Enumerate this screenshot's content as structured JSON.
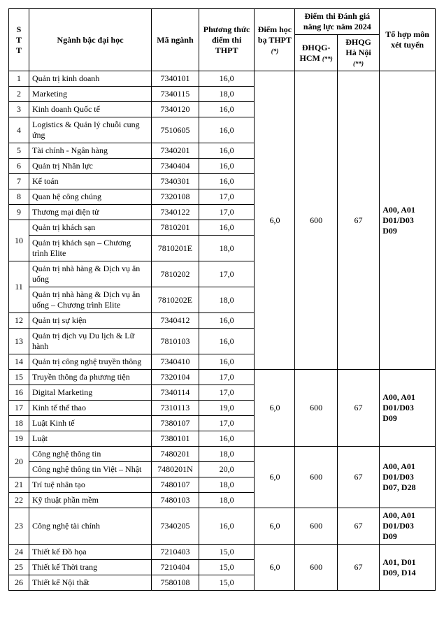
{
  "columns": {
    "stt_width": 24,
    "name_width": 145,
    "code_width": 56,
    "thpt_width": 66,
    "hocba_width": 48,
    "dhqgHcm_width": 50,
    "dhqgHn_width": 50,
    "combo_width": 66
  },
  "header": {
    "stt": "S\nT\nT",
    "name": "Ngành bậc đại học",
    "code": "Mã ngành",
    "thpt": "Phương thức điểm thi THPT",
    "hocba": "Điểm học bạ THPT",
    "hocba_note": "(*)",
    "dhgnl": "Điểm thi Đánh giá năng lực năm 2024",
    "dhqg_hcm": "ĐHQG-HCM",
    "dhqg_hcm_note": "(**)",
    "dhqg_hn": "ĐHQG Hà Nội",
    "dhqg_hn_note": "(**)",
    "combo": "Tổ hợp môn xét tuyển"
  },
  "groups": [
    {
      "hocba": "6,0",
      "dhqg_hcm": "600",
      "dhqg_hn": "67",
      "combo": "A00, A01\nD01/D03\nD09",
      "rows": [
        {
          "stt": "1",
          "name": "Quản trị kinh doanh",
          "code": "7340101",
          "thpt": "16,0",
          "rowspan": 1
        },
        {
          "stt": "2",
          "name": "Marketing",
          "code": "7340115",
          "thpt": "18,0",
          "rowspan": 1
        },
        {
          "stt": "3",
          "name": "Kinh doanh Quốc tế",
          "code": "7340120",
          "thpt": "16,0",
          "rowspan": 1
        },
        {
          "stt": "4",
          "name": "Logistics & Quản lý chuỗi cung ứng",
          "code": "7510605",
          "thpt": "16,0",
          "rowspan": 1
        },
        {
          "stt": "5",
          "name": "Tài chính - Ngân hàng",
          "code": "7340201",
          "thpt": "16,0",
          "rowspan": 1
        },
        {
          "stt": "6",
          "name": "Quản trị Nhân lực",
          "code": "7340404",
          "thpt": "16,0",
          "rowspan": 1
        },
        {
          "stt": "7",
          "name": "Kế toán",
          "code": "7340301",
          "thpt": "16,0",
          "rowspan": 1
        },
        {
          "stt": "8",
          "name": "Quan hệ công chúng",
          "code": "7320108",
          "thpt": "17,0",
          "rowspan": 1
        },
        {
          "stt": "9",
          "name": "Thương mại điện tử",
          "code": "7340122",
          "thpt": "17,0",
          "rowspan": 1
        },
        {
          "stt": "10",
          "name": "Quản trị khách sạn",
          "code": "7810201",
          "thpt": "16,0",
          "rowspan": 2
        },
        {
          "stt": "",
          "name": "Quản trị khách sạn – Chương trình Elite",
          "code": "7810201E",
          "thpt": "18,0",
          "rowspan": 0
        },
        {
          "stt": "11",
          "name": "Quản trị nhà hàng & Dịch vụ ăn uống",
          "code": "7810202",
          "thpt": "17,0",
          "rowspan": 2
        },
        {
          "stt": "",
          "name": "Quản trị nhà hàng & Dịch vụ ăn uống – Chương trình Elite",
          "code": "7810202E",
          "thpt": "18,0",
          "rowspan": 0
        },
        {
          "stt": "12",
          "name": "Quản trị sự kiện",
          "code": "7340412",
          "thpt": "16,0",
          "rowspan": 1
        },
        {
          "stt": "13",
          "name": "Quản trị dịch vụ Du lịch & Lữ hành",
          "code": "7810103",
          "thpt": "16,0",
          "rowspan": 1
        },
        {
          "stt": "14",
          "name": "Quản trị công nghệ truyền thông",
          "code": "7340410",
          "thpt": "16,0",
          "rowspan": 1
        }
      ]
    },
    {
      "hocba": "6,0",
      "dhqg_hcm": "600",
      "dhqg_hn": "67",
      "combo": "A00, A01\nD01/D03\nD09",
      "rows": [
        {
          "stt": "15",
          "name": "Truyền thông đa phương tiện",
          "code": "7320104",
          "thpt": "17,0",
          "rowspan": 1
        },
        {
          "stt": "16",
          "name": "Digital Marketing",
          "code": "7340114",
          "thpt": "17,0",
          "rowspan": 1
        },
        {
          "stt": "17",
          "name": "Kinh tế thể thao",
          "code": "7310113",
          "thpt": "19,0",
          "rowspan": 1
        },
        {
          "stt": "18",
          "name": "Luật Kinh tế",
          "code": "7380107",
          "thpt": "17,0",
          "rowspan": 1
        },
        {
          "stt": "19",
          "name": "Luật",
          "code": "7380101",
          "thpt": "16,0",
          "rowspan": 1
        }
      ]
    },
    {
      "hocba": "6,0",
      "dhqg_hcm": "600",
      "dhqg_hn": "67",
      "combo": "A00, A01\nD01/D03\nD07, D28",
      "rows": [
        {
          "stt": "20",
          "name": "Công nghệ thông tin",
          "code": "7480201",
          "thpt": "18,0",
          "rowspan": 2
        },
        {
          "stt": "",
          "name": "Công nghệ thông tin Việt – Nhật",
          "code": "7480201N",
          "thpt": "20,0",
          "rowspan": 0
        },
        {
          "stt": "21",
          "name": "Trí tuệ nhân tạo",
          "code": "7480107",
          "thpt": "18,0",
          "rowspan": 1
        },
        {
          "stt": "22",
          "name": "Kỹ thuật phần mềm",
          "code": "7480103",
          "thpt": "18,0",
          "rowspan": 1
        }
      ]
    },
    {
      "hocba": "6,0",
      "dhqg_hcm": "600",
      "dhqg_hn": "67",
      "combo": "A00, A01\nD01/D03\nD09",
      "rows": [
        {
          "stt": "23",
          "name": "Công nghệ tài chính",
          "code": "7340205",
          "thpt": "16,0",
          "rowspan": 1
        }
      ]
    },
    {
      "hocba": "6,0",
      "dhqg_hcm": "600",
      "dhqg_hn": "67",
      "combo": "A01, D01\nD09, D14",
      "rows": [
        {
          "stt": "24",
          "name": "Thiết kế Đồ họa",
          "code": "7210403",
          "thpt": "15,0",
          "rowspan": 1
        },
        {
          "stt": "25",
          "name": "Thiết kế Thời trang",
          "code": "7210404",
          "thpt": "15,0",
          "rowspan": 1
        },
        {
          "stt": "26",
          "name": "Thiết kế Nội thất",
          "code": "7580108",
          "thpt": "15,0",
          "rowspan": 1
        }
      ]
    }
  ]
}
